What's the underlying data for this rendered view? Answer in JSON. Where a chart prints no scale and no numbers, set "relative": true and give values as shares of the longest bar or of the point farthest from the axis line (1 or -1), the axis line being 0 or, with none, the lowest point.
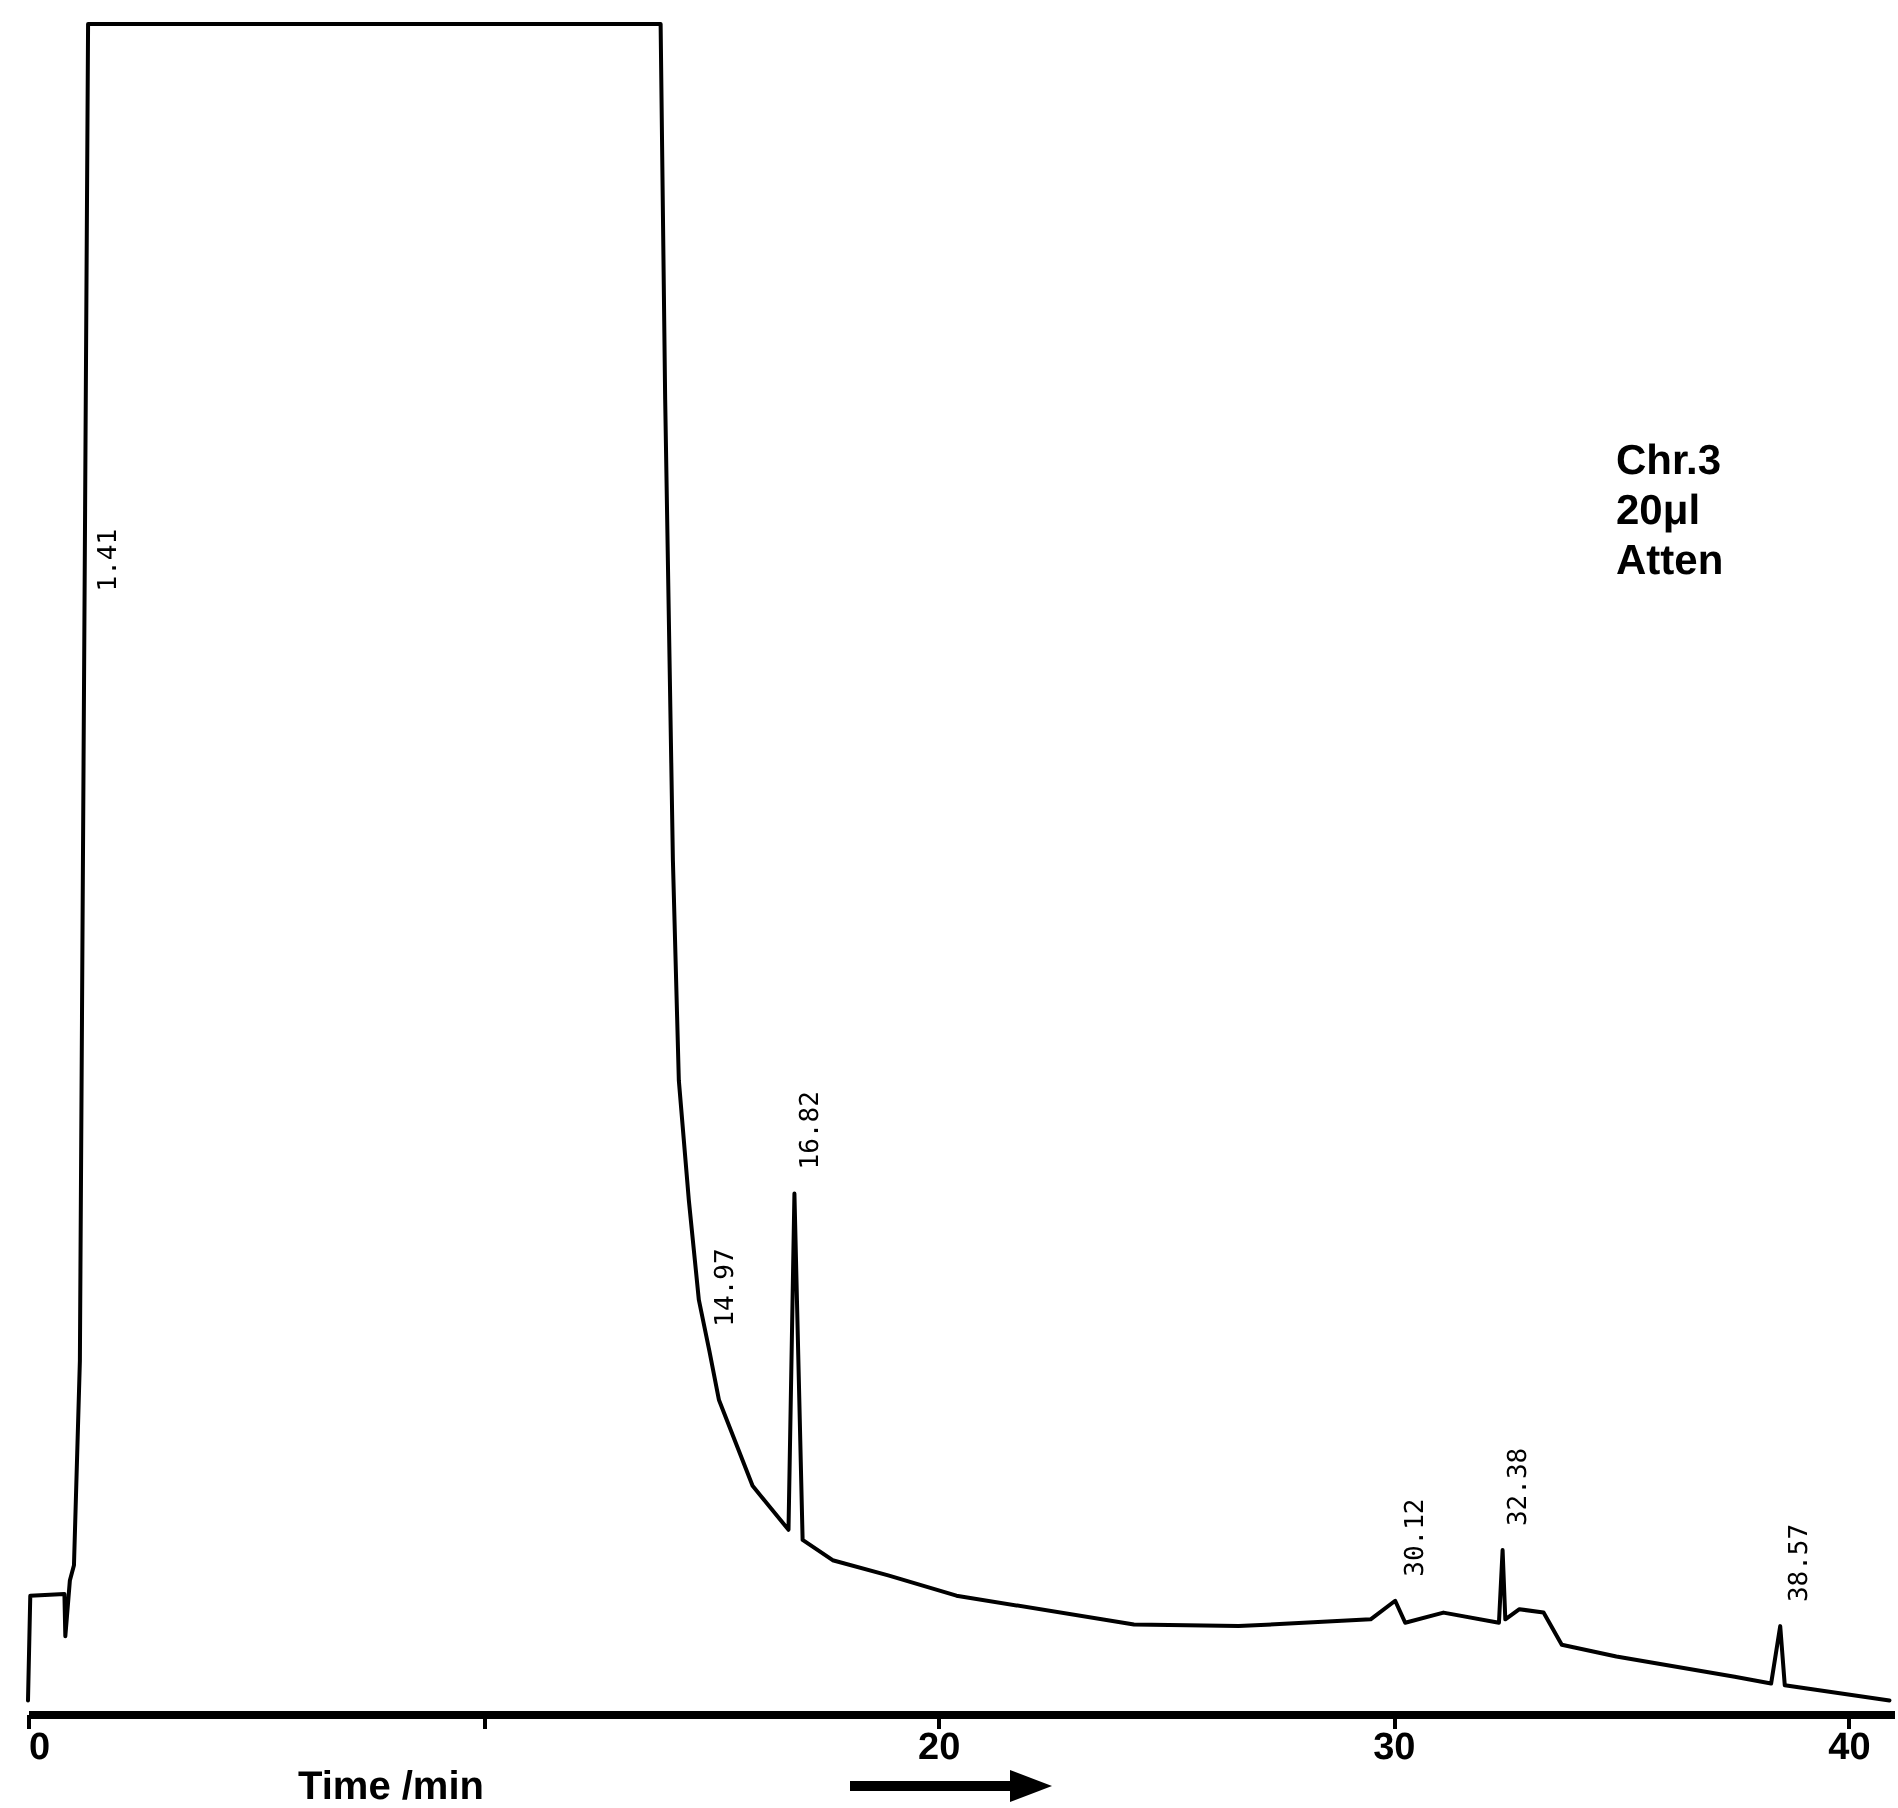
{
  "chart_data": {
    "type": "line",
    "relative": true,
    "xlabel": "Time /min",
    "x": [
      0,
      0.05,
      0.8,
      0.82,
      0.92,
      1.01,
      1.14,
      1.32,
      13.9,
      14.0,
      14.17,
      14.3,
      14.52,
      14.74,
      14.97,
      15.18,
      15.92,
      16.71,
      16.84,
      17.02,
      17.68,
      18.9,
      20.4,
      24.3,
      26.6,
      29.5,
      30.04,
      30.26,
      31.1,
      32.32,
      32.4,
      32.46,
      32.77,
      33.3,
      33.7,
      34.9,
      37.5,
      38.3,
      38.5,
      38.6,
      40.9
    ],
    "series": [
      {
        "color": "#000000",
        "values": [
          0.008,
          0.07,
          0.071,
          0.046,
          0.079,
          0.088,
          0.209,
          1.0,
          1.0,
          0.778,
          0.505,
          0.375,
          0.304,
          0.245,
          0.215,
          0.186,
          0.135,
          0.109,
          0.308,
          0.103,
          0.091,
          0.082,
          0.07,
          0.053,
          0.052,
          0.056,
          0.067,
          0.054,
          0.06,
          0.054,
          0.097,
          0.056,
          0.062,
          0.06,
          0.041,
          0.034,
          0.022,
          0.018,
          0.052,
          0.017,
          0.008
        ]
      }
    ],
    "xlim": [
      0,
      41
    ],
    "xticks": [
      0,
      {
        "value": 10,
        "label": null
      },
      20,
      30,
      40
    ],
    "grid": false,
    "line_style": "solid",
    "marker": "none",
    "annotations": [
      {
        "text": "1.41",
        "x": 1.41,
        "y": 0.65
      },
      {
        "text": "14.97",
        "x": 14.97,
        "y": 0.215
      },
      {
        "text": "16.82",
        "x": 16.82,
        "y": 0.308
      },
      {
        "text": "30.12",
        "x": 30.12,
        "y": 0.067
      },
      {
        "text": "32.38",
        "x": 32.38,
        "y": 0.097
      },
      {
        "text": "38.57",
        "x": 38.57,
        "y": 0.052
      },
      "Chr.3",
      "20μl",
      "Atten"
    ]
  }
}
